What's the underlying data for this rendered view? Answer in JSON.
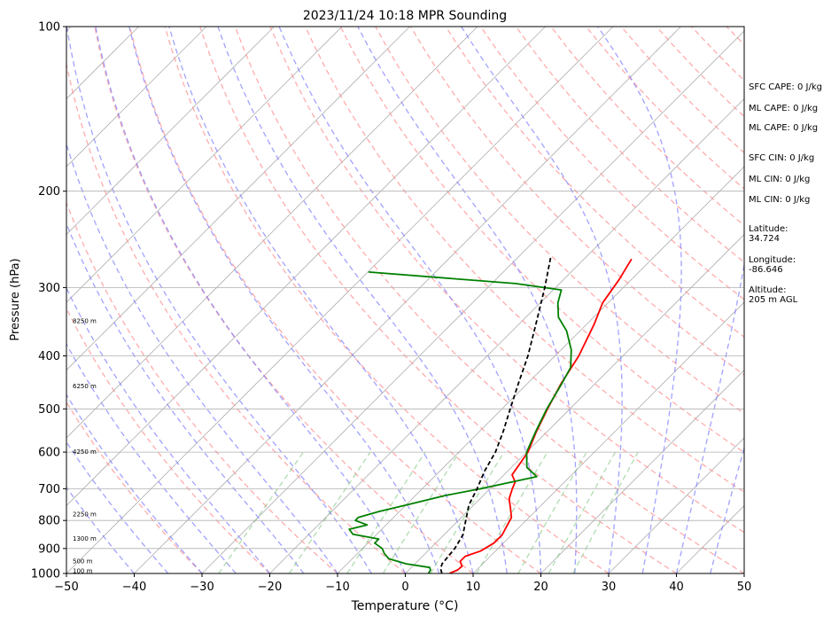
{
  "chart_data": {
    "type": "line",
    "title": "2023/11/24 10:18 MPR Sounding",
    "xlabel": "Temperature (°C)",
    "ylabel": "Pressure (hPa)",
    "xlim": [
      -50,
      50
    ],
    "ylim": [
      1000,
      100
    ],
    "y_scale": "log",
    "x_ticks": [
      "−50",
      "−40",
      "−30",
      "−20",
      "−10",
      "0",
      "10",
      "20",
      "30",
      "40",
      "50"
    ],
    "y_ticks": [
      "100",
      "200",
      "300",
      "400",
      "500",
      "600",
      "700",
      "800",
      "900",
      "1000"
    ],
    "grid": true,
    "skew": "skew-T log-p diagram (isotherms tilted 45°)",
    "series": [
      {
        "role": "temperature",
        "color": "#ff0000",
        "points": [
          {
            "p": 1000,
            "t": 6.5
          },
          {
            "p": 985,
            "t": 7.2
          },
          {
            "p": 970,
            "t": 7.3
          },
          {
            "p": 950,
            "t": 6.3
          },
          {
            "p": 930,
            "t": 6.3
          },
          {
            "p": 910,
            "t": 7.8
          },
          {
            "p": 880,
            "t": 8.6
          },
          {
            "p": 850,
            "t": 8.6
          },
          {
            "p": 820,
            "t": 8.0
          },
          {
            "p": 790,
            "t": 7.4
          },
          {
            "p": 760,
            "t": 5.9
          },
          {
            "p": 730,
            "t": 4.3
          },
          {
            "p": 700,
            "t": 3.3
          },
          {
            "p": 680,
            "t": 2.7
          },
          {
            "p": 660,
            "t": 1.2
          },
          {
            "p": 600,
            "t": 0.2
          },
          {
            "p": 550,
            "t": -1.6
          },
          {
            "p": 500,
            "t": -3.3
          },
          {
            "p": 450,
            "t": -5.0
          },
          {
            "p": 400,
            "t": -6.5
          },
          {
            "p": 350,
            "t": -8.9
          },
          {
            "p": 320,
            "t": -10.8
          },
          {
            "p": 290,
            "t": -11.8
          },
          {
            "p": 266,
            "t": -13.0
          }
        ]
      },
      {
        "role": "dewpoint",
        "color": "#008000",
        "points": [
          {
            "p": 1000,
            "t": 3.4
          },
          {
            "p": 985,
            "t": 3.2
          },
          {
            "p": 975,
            "t": 2.7
          },
          {
            "p": 960,
            "t": -1.3
          },
          {
            "p": 940,
            "t": -4.6
          },
          {
            "p": 920,
            "t": -6.0
          },
          {
            "p": 900,
            "t": -7.1
          },
          {
            "p": 880,
            "t": -9.0
          },
          {
            "p": 865,
            "t": -9.0
          },
          {
            "p": 848,
            "t": -13.5
          },
          {
            "p": 830,
            "t": -14.8
          },
          {
            "p": 815,
            "t": -12.8
          },
          {
            "p": 800,
            "t": -15.2
          },
          {
            "p": 790,
            "t": -15.2
          },
          {
            "p": 770,
            "t": -13.0
          },
          {
            "p": 750,
            "t": -10.0
          },
          {
            "p": 720,
            "t": -5.6
          },
          {
            "p": 700,
            "t": -1.4
          },
          {
            "p": 665,
            "t": 5.1
          },
          {
            "p": 640,
            "t": 2.3
          },
          {
            "p": 600,
            "t": 0.0
          },
          {
            "p": 550,
            "t": -1.7
          },
          {
            "p": 500,
            "t": -3.4
          },
          {
            "p": 450,
            "t": -4.9
          },
          {
            "p": 420,
            "t": -6.0
          },
          {
            "p": 390,
            "t": -8.5
          },
          {
            "p": 360,
            "t": -12.0
          },
          {
            "p": 340,
            "t": -15.2
          },
          {
            "p": 320,
            "t": -17.4
          },
          {
            "p": 303,
            "t": -18.8
          },
          {
            "p": 295,
            "t": -26.5
          },
          {
            "p": 281,
            "t": -49.9
          }
        ]
      },
      {
        "role": "parcel-profile",
        "color": "#000000",
        "style": "dashed",
        "points": [
          {
            "p": 1000,
            "t": 5.4
          },
          {
            "p": 980,
            "t": 4.5
          },
          {
            "p": 960,
            "t": 4.0
          },
          {
            "p": 900,
            "t": 3.6
          },
          {
            "p": 850,
            "t": 2.8
          },
          {
            "p": 800,
            "t": 1.1
          },
          {
            "p": 750,
            "t": -0.7
          },
          {
            "p": 700,
            "t": -1.9
          },
          {
            "p": 650,
            "t": -3.4
          },
          {
            "p": 600,
            "t": -4.6
          },
          {
            "p": 550,
            "t": -6.5
          },
          {
            "p": 500,
            "t": -8.8
          },
          {
            "p": 450,
            "t": -11.3
          },
          {
            "p": 400,
            "t": -14.0
          },
          {
            "p": 350,
            "t": -17.5
          },
          {
            "p": 300,
            "t": -21.6
          },
          {
            "p": 263,
            "t": -25.3
          }
        ]
      }
    ],
    "height_labels": [
      {
        "p": 346,
        "text": "8250 m"
      },
      {
        "p": 455,
        "text": "6250 m"
      },
      {
        "p": 600,
        "text": "4250 m"
      },
      {
        "p": 780,
        "text": "2250 m"
      },
      {
        "p": 865,
        "text": "1300 m"
      },
      {
        "p": 950,
        "text": "500 m"
      },
      {
        "p": 990,
        "text": "100 m"
      }
    ],
    "side_info": [
      "SFC CAPE: 0 J/kg",
      "ML CAPE: 0 J/kg",
      "ML CAPE: 0 J/kg",
      "SFC CIN: 0 J/kg",
      "ML CIN: 0 J/kg",
      "ML CIN: 0 J/kg",
      "Latitude:\n34.724",
      "Longitude:\n-86.646",
      "Altitude:\n205 m AGL"
    ],
    "colors": {
      "isotherm": "#b0b0b0",
      "dry_adiabat": "#ff9090",
      "moist_adiabat": "#7070ff",
      "mixing_ratio": "#70c070"
    }
  }
}
